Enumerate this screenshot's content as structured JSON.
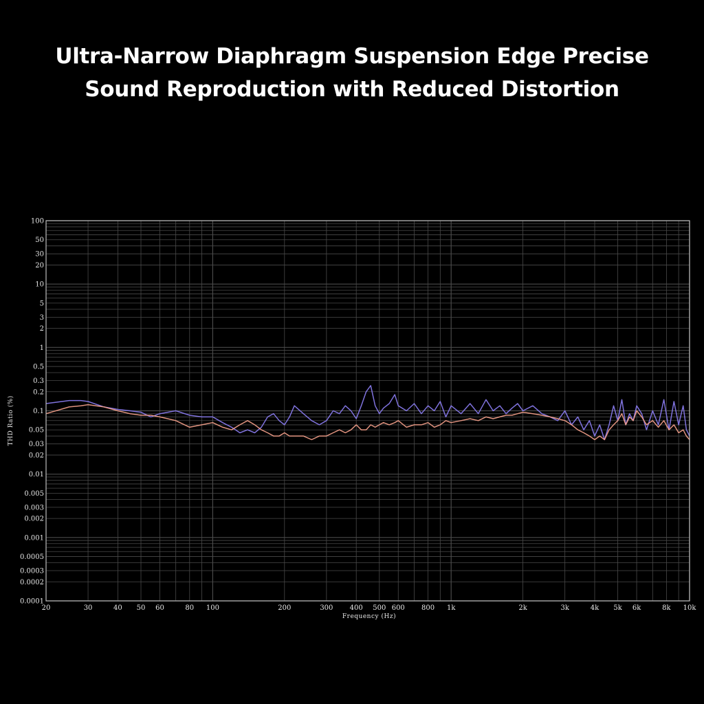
{
  "title": {
    "line1": "Ultra-Narrow Diaphragm Suspension Edge Precise",
    "line2": "Sound Reproduction with Reduced Distortion"
  },
  "colors": {
    "background": "#000000",
    "grid": "#4a4a4a",
    "frame": "#bdbdbd",
    "series_a": "#8a7cf0",
    "series_b": "#f4a08a"
  },
  "chart_data": {
    "type": "line",
    "xscale": "log",
    "yscale": "log",
    "xlim": [
      20,
      10000
    ],
    "ylim": [
      0.0001,
      100
    ],
    "xlabel": "Frequency (Hz)",
    "ylabel": "THD Ratio (%)",
    "grid": true,
    "legend": "none",
    "xticks": [
      {
        "v": 20,
        "label": "20"
      },
      {
        "v": 30,
        "label": "30"
      },
      {
        "v": 40,
        "label": "40"
      },
      {
        "v": 50,
        "label": "50"
      },
      {
        "v": 60,
        "label": "60"
      },
      {
        "v": 80,
        "label": "80"
      },
      {
        "v": 100,
        "label": "100"
      },
      {
        "v": 200,
        "label": "200"
      },
      {
        "v": 300,
        "label": "300"
      },
      {
        "v": 400,
        "label": "400"
      },
      {
        "v": 500,
        "label": "500"
      },
      {
        "v": 600,
        "label": "600"
      },
      {
        "v": 800,
        "label": "800"
      },
      {
        "v": 1000,
        "label": "1k"
      },
      {
        "v": 2000,
        "label": "2k"
      },
      {
        "v": 3000,
        "label": "3k"
      },
      {
        "v": 4000,
        "label": "4k"
      },
      {
        "v": 5000,
        "label": "5k"
      },
      {
        "v": 6000,
        "label": "6k"
      },
      {
        "v": 8000,
        "label": "8k"
      },
      {
        "v": 10000,
        "label": "10k"
      }
    ],
    "yticks": [
      {
        "v": 100,
        "label": "100"
      },
      {
        "v": 50,
        "label": "50"
      },
      {
        "v": 30,
        "label": "30"
      },
      {
        "v": 20,
        "label": "20"
      },
      {
        "v": 10,
        "label": "10"
      },
      {
        "v": 5,
        "label": "5"
      },
      {
        "v": 3,
        "label": "3"
      },
      {
        "v": 2,
        "label": "2"
      },
      {
        "v": 1,
        "label": "1"
      },
      {
        "v": 0.5,
        "label": "0.5"
      },
      {
        "v": 0.3,
        "label": "0.3"
      },
      {
        "v": 0.2,
        "label": "0.2"
      },
      {
        "v": 0.1,
        "label": "0.1"
      },
      {
        "v": 0.05,
        "label": "0.05"
      },
      {
        "v": 0.03,
        "label": "0.03"
      },
      {
        "v": 0.02,
        "label": "0.02"
      },
      {
        "v": 0.01,
        "label": "0.01"
      },
      {
        "v": 0.005,
        "label": "0.005"
      },
      {
        "v": 0.003,
        "label": "0.003"
      },
      {
        "v": 0.002,
        "label": "0.002"
      },
      {
        "v": 0.001,
        "label": "0.001"
      },
      {
        "v": 0.0005,
        "label": "0.0005"
      },
      {
        "v": 0.0003,
        "label": "0.0003"
      },
      {
        "v": 0.0002,
        "label": "0.0002"
      },
      {
        "v": 0.0001,
        "label": "0.0001"
      }
    ],
    "series": [
      {
        "color": "#8a7cf0",
        "x": [
          20,
          25,
          28,
          30,
          35,
          40,
          45,
          50,
          55,
          60,
          70,
          80,
          90,
          100,
          110,
          120,
          130,
          140,
          150,
          160,
          170,
          180,
          190,
          200,
          210,
          220,
          240,
          260,
          280,
          300,
          320,
          340,
          360,
          380,
          400,
          420,
          440,
          460,
          480,
          500,
          520,
          550,
          580,
          600,
          650,
          700,
          750,
          800,
          850,
          900,
          950,
          1000,
          1100,
          1200,
          1300,
          1400,
          1500,
          1600,
          1700,
          1800,
          1900,
          2000,
          2200,
          2400,
          2600,
          2800,
          3000,
          3200,
          3400,
          3600,
          3800,
          4000,
          4200,
          4400,
          4600,
          4800,
          5000,
          5200,
          5400,
          5600,
          5800,
          6000,
          6300,
          6600,
          7000,
          7400,
          7800,
          8200,
          8600,
          9000,
          9400,
          9700,
          10000
        ],
        "y": [
          0.13,
          0.145,
          0.145,
          0.14,
          0.115,
          0.105,
          0.1,
          0.095,
          0.08,
          0.09,
          0.1,
          0.085,
          0.08,
          0.08,
          0.065,
          0.055,
          0.045,
          0.05,
          0.045,
          0.055,
          0.08,
          0.09,
          0.07,
          0.06,
          0.08,
          0.12,
          0.09,
          0.07,
          0.06,
          0.07,
          0.1,
          0.09,
          0.12,
          0.1,
          0.075,
          0.12,
          0.2,
          0.25,
          0.12,
          0.09,
          0.11,
          0.13,
          0.18,
          0.12,
          0.1,
          0.13,
          0.09,
          0.12,
          0.1,
          0.14,
          0.08,
          0.12,
          0.09,
          0.13,
          0.09,
          0.15,
          0.1,
          0.12,
          0.09,
          0.11,
          0.13,
          0.1,
          0.12,
          0.09,
          0.08,
          0.07,
          0.1,
          0.06,
          0.08,
          0.05,
          0.07,
          0.04,
          0.06,
          0.035,
          0.06,
          0.12,
          0.07,
          0.15,
          0.06,
          0.09,
          0.07,
          0.12,
          0.09,
          0.05,
          0.1,
          0.06,
          0.15,
          0.05,
          0.14,
          0.06,
          0.12,
          0.05,
          0.04
        ]
      },
      {
        "color": "#f4a08a",
        "x": [
          20,
          25,
          28,
          30,
          35,
          40,
          45,
          50,
          55,
          60,
          70,
          80,
          90,
          100,
          110,
          120,
          130,
          140,
          150,
          160,
          170,
          180,
          190,
          200,
          210,
          220,
          240,
          260,
          280,
          300,
          320,
          340,
          360,
          380,
          400,
          420,
          440,
          460,
          480,
          500,
          520,
          550,
          580,
          600,
          650,
          700,
          750,
          800,
          850,
          900,
          950,
          1000,
          1100,
          1200,
          1300,
          1400,
          1500,
          1600,
          1700,
          1800,
          1900,
          2000,
          2200,
          2400,
          2600,
          2800,
          3000,
          3200,
          3400,
          3600,
          3800,
          4000,
          4200,
          4400,
          4600,
          4800,
          5000,
          5200,
          5400,
          5600,
          5800,
          6000,
          6300,
          6600,
          7000,
          7400,
          7800,
          8200,
          8600,
          9000,
          9400,
          9700,
          10000
        ],
        "y": [
          0.09,
          0.115,
          0.12,
          0.125,
          0.115,
          0.1,
          0.09,
          0.085,
          0.085,
          0.08,
          0.07,
          0.055,
          0.06,
          0.065,
          0.055,
          0.05,
          0.06,
          0.07,
          0.06,
          0.05,
          0.045,
          0.04,
          0.04,
          0.045,
          0.04,
          0.04,
          0.04,
          0.035,
          0.04,
          0.04,
          0.045,
          0.05,
          0.045,
          0.05,
          0.06,
          0.05,
          0.05,
          0.06,
          0.055,
          0.06,
          0.065,
          0.06,
          0.065,
          0.07,
          0.055,
          0.06,
          0.06,
          0.065,
          0.055,
          0.06,
          0.07,
          0.065,
          0.07,
          0.075,
          0.07,
          0.08,
          0.075,
          0.08,
          0.085,
          0.085,
          0.09,
          0.095,
          0.09,
          0.085,
          0.08,
          0.075,
          0.07,
          0.06,
          0.05,
          0.045,
          0.04,
          0.035,
          0.04,
          0.035,
          0.05,
          0.06,
          0.07,
          0.09,
          0.06,
          0.08,
          0.07,
          0.1,
          0.08,
          0.06,
          0.07,
          0.055,
          0.07,
          0.05,
          0.06,
          0.045,
          0.05,
          0.04,
          0.035
        ]
      }
    ]
  }
}
